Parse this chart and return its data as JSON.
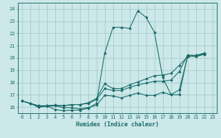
{
  "xlabel": "Humidex (Indice chaleur)",
  "ylabel": "",
  "bg_color": "#cce8e8",
  "grid_color": "#aacfcf",
  "line_color": "#1a6b6b",
  "xlim": [
    -0.5,
    23.5
  ],
  "ylim": [
    15.5,
    24.5
  ],
  "yticks": [
    16,
    17,
    18,
    19,
    20,
    21,
    22,
    23,
    24
  ],
  "xticks": [
    0,
    1,
    2,
    3,
    4,
    5,
    6,
    7,
    8,
    9,
    10,
    11,
    12,
    13,
    14,
    15,
    16,
    17,
    18,
    19,
    20,
    21,
    22,
    23
  ],
  "lines": [
    {
      "x": [
        0,
        1,
        2,
        3,
        4,
        5,
        6,
        7,
        8,
        9,
        10,
        11,
        12,
        13,
        14,
        15,
        16,
        17,
        18,
        19,
        20,
        21,
        22
      ],
      "y": [
        16.5,
        16.3,
        16.0,
        16.1,
        15.8,
        15.7,
        15.75,
        15.75,
        15.9,
        16.3,
        20.4,
        22.5,
        22.5,
        22.4,
        23.85,
        23.3,
        22.1,
        18.4,
        17.0,
        17.0,
        20.2,
        20.1,
        20.3
      ]
    },
    {
      "x": [
        0,
        1,
        2,
        3,
        4,
        5,
        6,
        7,
        8,
        9,
        10,
        11,
        12,
        13,
        14,
        15,
        16,
        17,
        18,
        19,
        20,
        21,
        22
      ],
      "y": [
        16.5,
        16.3,
        16.1,
        16.1,
        16.15,
        16.1,
        16.2,
        16.2,
        16.35,
        16.7,
        17.9,
        17.5,
        17.5,
        17.8,
        18.05,
        18.3,
        18.55,
        18.6,
        18.75,
        19.4,
        20.1,
        20.2,
        20.3
      ]
    },
    {
      "x": [
        0,
        1,
        2,
        3,
        4,
        5,
        6,
        7,
        8,
        9,
        10,
        11,
        12,
        13,
        14,
        15,
        16,
        17,
        18,
        19,
        20,
        21,
        22
      ],
      "y": [
        16.5,
        16.3,
        16.1,
        16.1,
        16.15,
        16.1,
        16.2,
        16.2,
        16.3,
        16.6,
        17.5,
        17.35,
        17.35,
        17.6,
        17.8,
        17.95,
        18.1,
        18.1,
        18.2,
        18.9,
        20.25,
        20.2,
        20.4
      ]
    },
    {
      "x": [
        0,
        1,
        2,
        3,
        4,
        5,
        6,
        7,
        8,
        9,
        10,
        11,
        12,
        13,
        14,
        15,
        16,
        17,
        18,
        19,
        20,
        21,
        22
      ],
      "y": [
        16.5,
        16.3,
        16.0,
        16.05,
        16.1,
        15.95,
        15.95,
        15.85,
        15.95,
        16.15,
        16.95,
        16.9,
        16.75,
        16.95,
        17.15,
        16.95,
        16.95,
        17.2,
        17.0,
        17.4,
        20.1,
        20.2,
        20.35
      ]
    }
  ]
}
